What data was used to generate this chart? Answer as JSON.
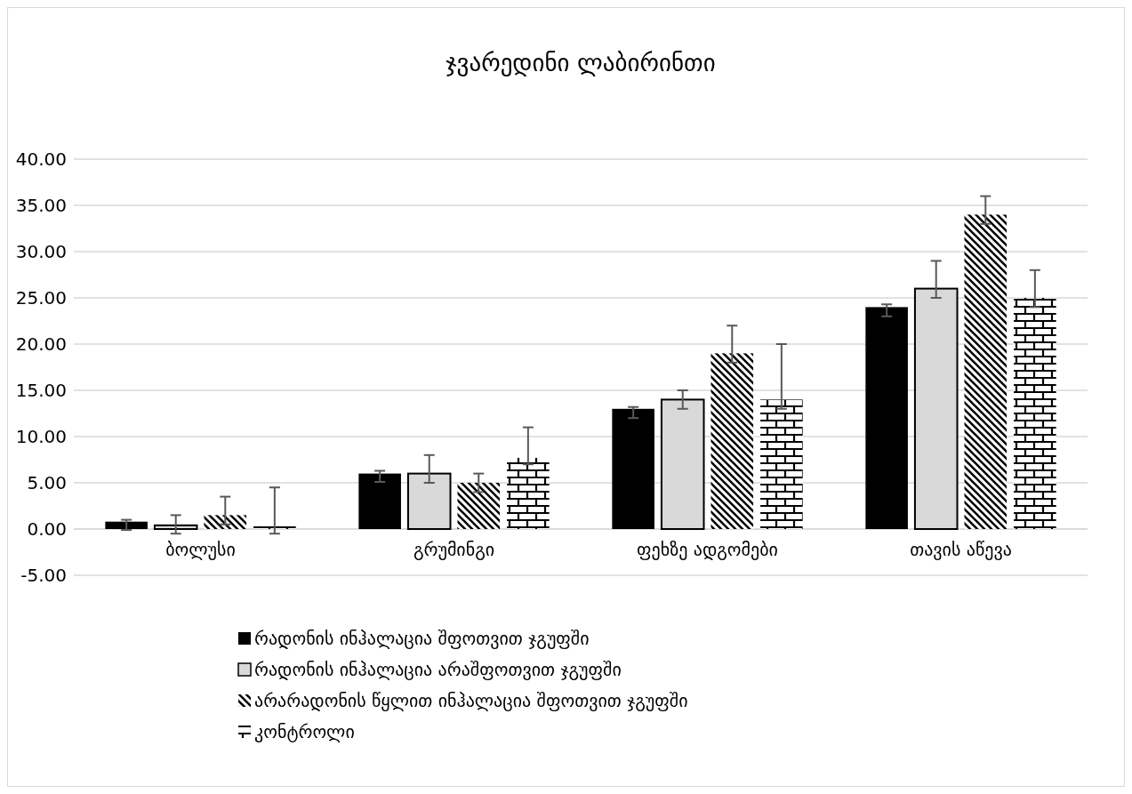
{
  "chart_data": {
    "type": "bar",
    "title": "ჯვარედინი ლაბირინთი",
    "categories": [
      "ბოლუსი",
      "გრუმინგი",
      "ფეხზე ადგომები",
      "თავის აწევა"
    ],
    "series": [
      {
        "name": "რადონის ინჰალაცია შფოთვით ჯგუფში",
        "color": "#000000",
        "values": [
          0.8,
          6.0,
          13.0,
          24.0
        ],
        "errors": [
          [
            -0.1,
            1.0
          ],
          [
            5.1,
            6.3
          ],
          [
            12.0,
            13.2
          ],
          [
            23.0,
            24.3
          ]
        ]
      },
      {
        "name": "რადონის ინჰალაცია არაშფოთვით ჯგუფში",
        "color": "#d9d9d9",
        "values": [
          0.4,
          6.0,
          14.0,
          26.0
        ],
        "errors": [
          [
            -0.5,
            1.5
          ],
          [
            5.0,
            8.0
          ],
          [
            13.0,
            15.0
          ],
          [
            25.0,
            29.0
          ]
        ]
      },
      {
        "name": "არარადონის წყლით ინჰალაცია შფოთვით ჯგუფში",
        "color": "#000000",
        "values": [
          1.5,
          5.0,
          19.0,
          34.0
        ],
        "errors": [
          [
            0.5,
            3.5
          ],
          [
            4.0,
            6.0
          ],
          [
            18.0,
            22.0
          ],
          [
            33.0,
            36.0
          ]
        ]
      },
      {
        "name": "კონტროლი",
        "color": "#000000",
        "values": [
          0.3,
          7.7,
          14.0,
          25.0
        ],
        "errors": [
          [
            -0.5,
            4.5
          ],
          [
            7.0,
            11.0
          ],
          [
            13.0,
            20.0
          ],
          [
            24.0,
            28.0
          ]
        ]
      }
    ],
    "ylim": [
      -5,
      40
    ],
    "yticks": [
      {
        "value": -5,
        "label": "-5.00"
      },
      {
        "value": 0,
        "label": "0.00"
      },
      {
        "value": 5,
        "label": "5.00"
      },
      {
        "value": 10,
        "label": "10.00"
      },
      {
        "value": 15,
        "label": "15.00"
      },
      {
        "value": 20,
        "label": "20.00"
      },
      {
        "value": 25,
        "label": "25.00"
      },
      {
        "value": 30,
        "label": "30.00"
      },
      {
        "value": 35,
        "label": "35.00"
      },
      {
        "value": 40,
        "label": "40.00"
      }
    ],
    "grid": "y",
    "legend": "bottom"
  }
}
